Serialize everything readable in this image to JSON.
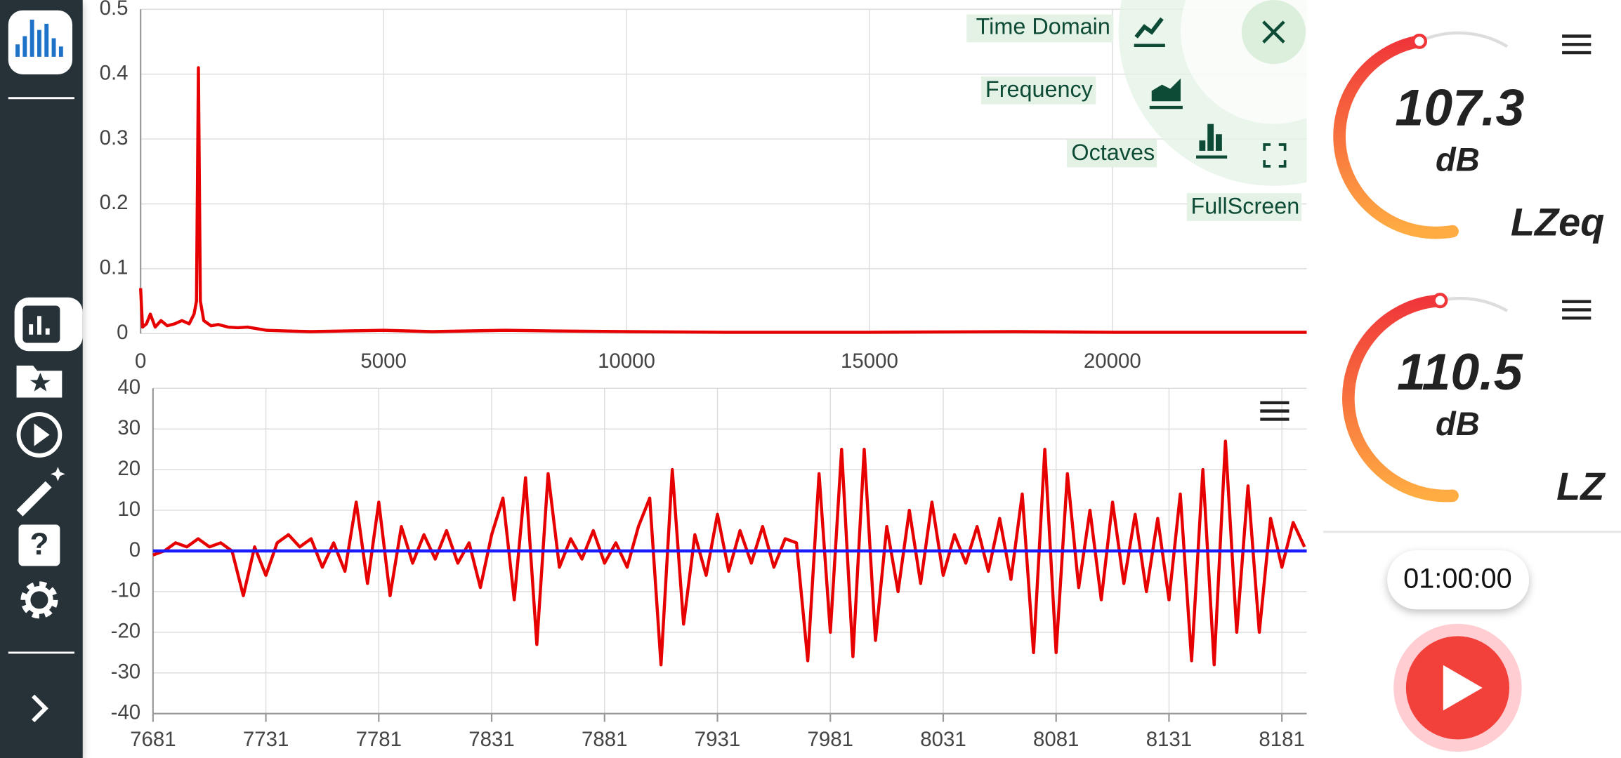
{
  "chart_data": [
    {
      "type": "line",
      "color": "#e60000",
      "x": [
        0,
        40,
        120,
        200,
        300,
        420,
        550,
        700,
        850,
        1000,
        1100,
        1150,
        1190,
        1230,
        1300,
        1450,
        1600,
        1800,
        2000,
        2200,
        2600,
        3000,
        3500,
        4200,
        5000,
        6000,
        7500,
        8500,
        10000,
        12000,
        15000,
        18000,
        20000,
        24000
      ],
      "values": [
        0.07,
        0.01,
        0.015,
        0.03,
        0.01,
        0.02,
        0.012,
        0.015,
        0.02,
        0.015,
        0.03,
        0.05,
        0.41,
        0.05,
        0.02,
        0.012,
        0.014,
        0.01,
        0.009,
        0.01,
        0.005,
        0.004,
        0.003,
        0.004,
        0.005,
        0.003,
        0.005,
        0.004,
        0.003,
        0.002,
        0.002,
        0.003,
        0.002,
        0.002
      ],
      "xlim": [
        0,
        24000
      ],
      "xticks": [
        0,
        5000,
        10000,
        15000,
        20000
      ],
      "ylim": [
        0,
        0.5
      ],
      "yticks": [
        0,
        0.1,
        0.2,
        0.3,
        0.4,
        0.5
      ],
      "grid": true
    },
    {
      "type": "line",
      "series": [
        {
          "color": "#e60000",
          "x": [
            7681,
            7686,
            7691,
            7696,
            7701,
            7706,
            7711,
            7716,
            7721,
            7726,
            7731,
            7736,
            7741,
            7746,
            7751,
            7756,
            7761,
            7766,
            7771,
            7776,
            7781,
            7786,
            7791,
            7796,
            7801,
            7806,
            7811,
            7816,
            7821,
            7826,
            7831,
            7836,
            7841,
            7846,
            7851,
            7856,
            7861,
            7866,
            7871,
            7876,
            7881,
            7886,
            7891,
            7896,
            7901,
            7906,
            7911,
            7916,
            7921,
            7926,
            7931,
            7936,
            7941,
            7946,
            7951,
            7956,
            7961,
            7966,
            7971,
            7976,
            7981,
            7986,
            7991,
            7996,
            8001,
            8006,
            8011,
            8016,
            8021,
            8026,
            8031,
            8036,
            8041,
            8046,
            8051,
            8056,
            8061,
            8066,
            8071,
            8076,
            8081,
            8086,
            8091,
            8096,
            8101,
            8106,
            8111,
            8116,
            8121,
            8126,
            8131,
            8136,
            8141,
            8146,
            8151,
            8156,
            8161,
            8166,
            8171,
            8176,
            8181,
            8186,
            8191
          ],
          "values": [
            -1,
            0,
            2,
            1,
            3,
            1,
            2,
            0,
            -11,
            1,
            -6,
            2,
            4,
            1,
            3,
            -4,
            2,
            -5,
            12,
            -8,
            12,
            -11,
            6,
            -3,
            4,
            -2,
            5,
            -3,
            2,
            -9,
            4,
            13,
            -12,
            18,
            -23,
            19,
            -4,
            3,
            -2,
            5,
            -3,
            2,
            -4,
            6,
            13,
            -28,
            20,
            -18,
            4,
            -6,
            9,
            -5,
            5,
            -3,
            6,
            -4,
            3,
            2,
            -27,
            19,
            -20,
            25,
            -26,
            25,
            -22,
            6,
            -10,
            10,
            -8,
            12,
            -6,
            4,
            -3,
            6,
            -5,
            8,
            -7,
            14,
            -25,
            25,
            -25,
            19,
            -9,
            10,
            -12,
            12,
            -8,
            9,
            -10,
            8,
            -12,
            14,
            -27,
            20,
            -28,
            27,
            -20,
            16,
            -20,
            8,
            -4,
            7,
            1
          ]
        },
        {
          "color": "#1a1aff",
          "x": [
            7681,
            8192
          ],
          "values": [
            0,
            0
          ]
        }
      ],
      "xlim": [
        7681,
        8192
      ],
      "xticks": [
        7681,
        7731,
        7781,
        7831,
        7881,
        7931,
        7981,
        8031,
        8081,
        8131,
        8181
      ],
      "ylim": [
        -40,
        40
      ],
      "yticks": [
        -40,
        -30,
        -20,
        -10,
        0,
        10,
        20,
        30,
        40
      ],
      "grid": true
    }
  ],
  "menu": {
    "items": [
      "Time Domain",
      "Frequency",
      "Octaves",
      "FullScreen"
    ]
  },
  "meters": [
    {
      "value": 107.3,
      "unit": "dB",
      "label": "LZeq"
    },
    {
      "value": 110.5,
      "unit": "dB",
      "label": "LZ"
    }
  ],
  "timer": "01:00:00"
}
